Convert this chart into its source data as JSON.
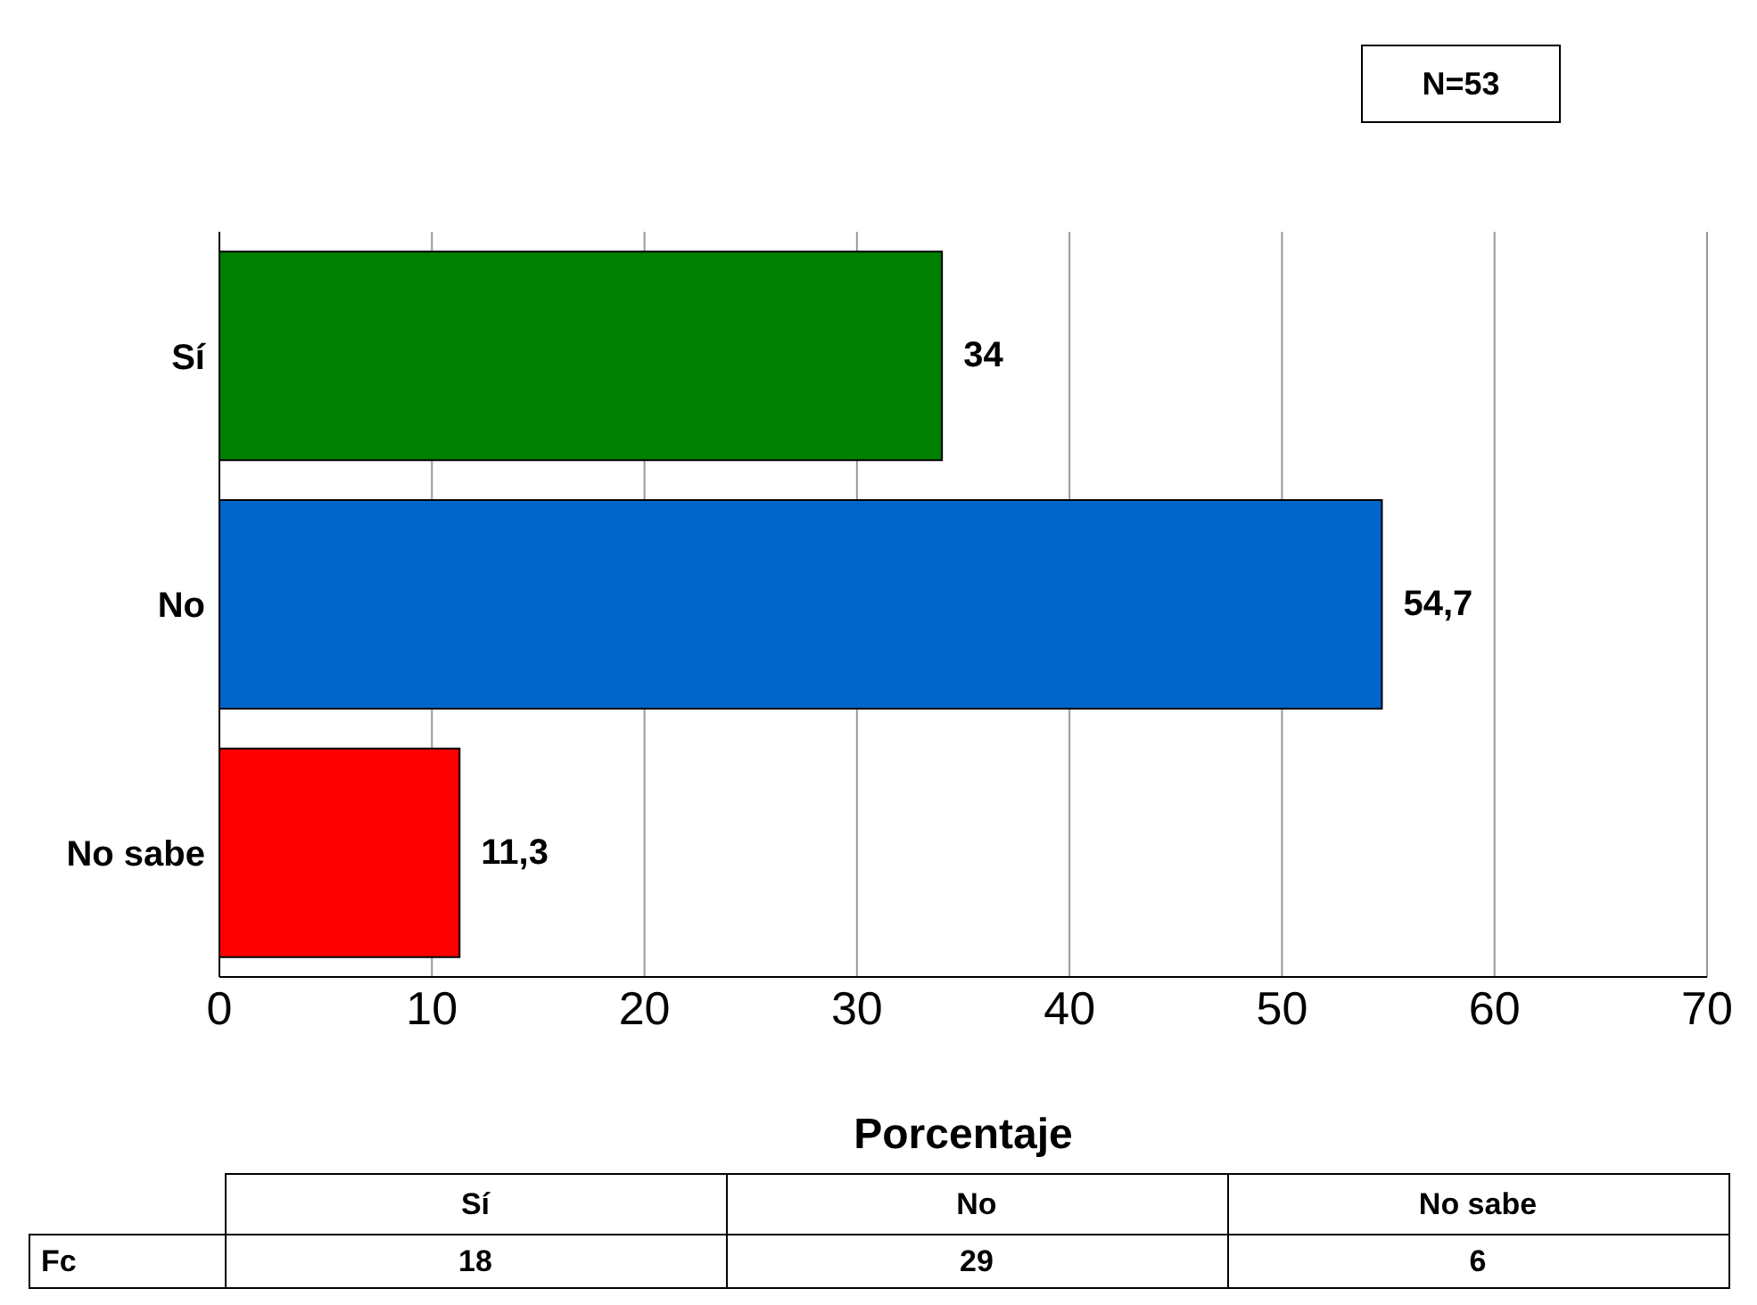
{
  "chart_data": {
    "type": "bar",
    "orientation": "horizontal",
    "categories": [
      "Sí",
      "No",
      "No sabe"
    ],
    "values": [
      34,
      54.7,
      11.3
    ],
    "value_labels": [
      "34",
      "54,7",
      "11,3"
    ],
    "colors": [
      "#008000",
      "#0066cc",
      "#ff0000"
    ],
    "xlim": [
      0,
      70
    ],
    "xticks": [
      0,
      10,
      20,
      30,
      40,
      50,
      60,
      70
    ],
    "grid": "x",
    "xlabel": "Porcentaje",
    "annotations": [
      "N=53",
      "Fc",
      "18",
      "29",
      "6"
    ]
  }
}
